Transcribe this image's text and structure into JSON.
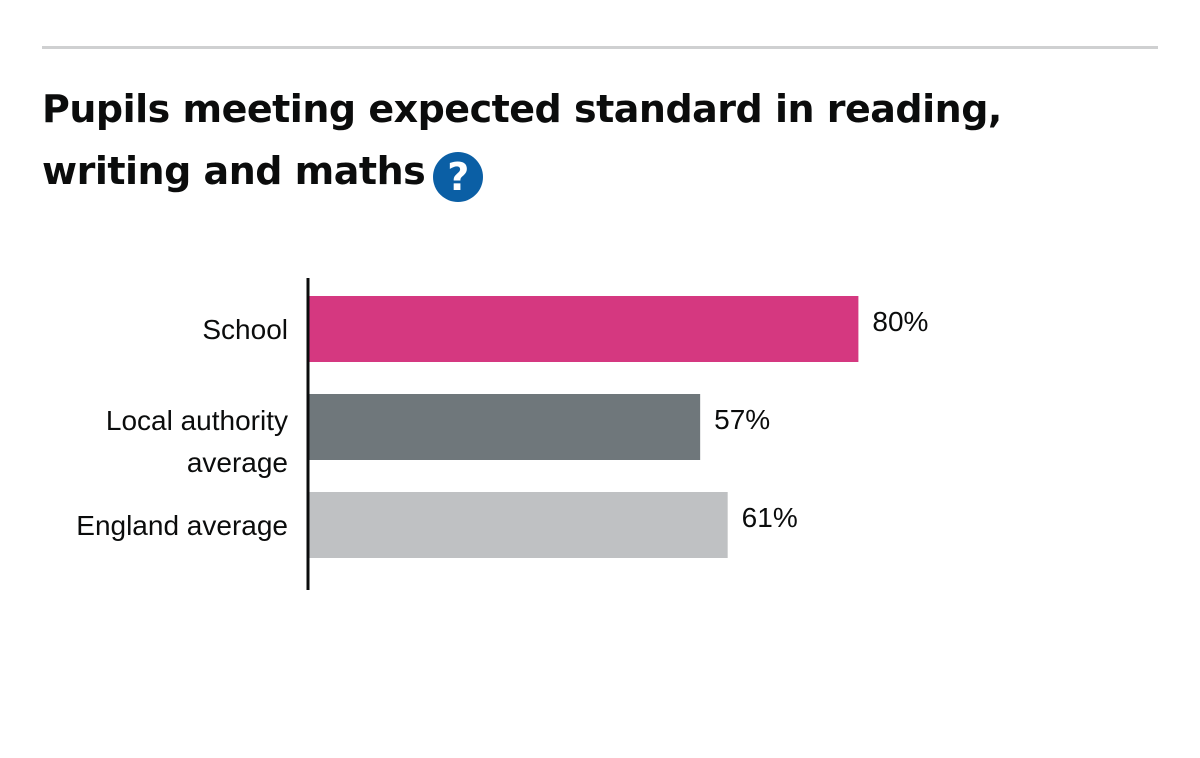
{
  "title": "Pupils meeting expected standard in reading, writing and maths",
  "help_icon": {
    "icon": "question-circle-icon",
    "glyph": "?"
  },
  "colors": {
    "school": "#d53880",
    "local_authority": "#6f777b",
    "england": "#bfc1c3",
    "axis": "#0b0c0c",
    "help_icon": "#0b5fa5"
  },
  "chart_data": {
    "type": "bar",
    "orientation": "horizontal",
    "title": "Pupils meeting expected standard in reading, writing and maths",
    "xlabel": "",
    "ylabel": "",
    "xlim": [
      0,
      100
    ],
    "grid": false,
    "categories": [
      [
        "School"
      ],
      [
        "Local authority",
        "average"
      ],
      [
        "England average"
      ]
    ],
    "values": [
      80,
      57,
      61
    ],
    "value_labels": [
      "80%",
      "57%",
      "61%"
    ],
    "colors": [
      "#d53880",
      "#6f777b",
      "#bfc1c3"
    ]
  }
}
